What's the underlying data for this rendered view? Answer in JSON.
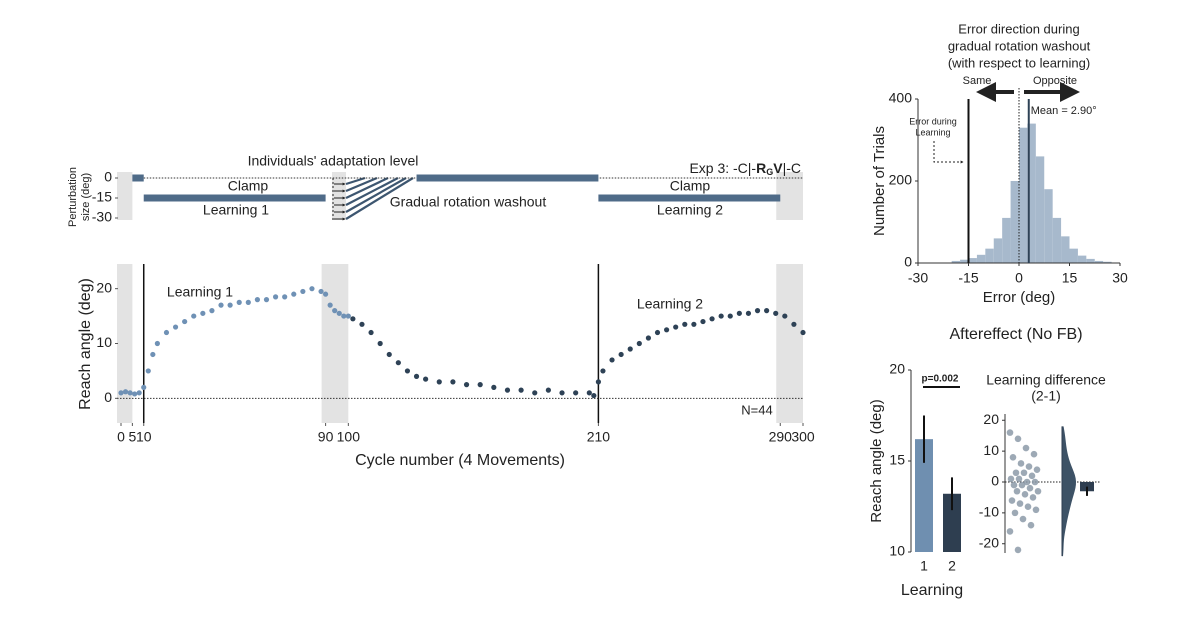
{
  "chart_data": [
    {
      "type": "schedule",
      "ylabel": [
        "Perturbation",
        "size (deg)"
      ],
      "xlim": [
        0,
        300
      ],
      "ylim": [
        -30,
        0
      ],
      "yticks": [
        0,
        -15,
        -30
      ],
      "hline": 0,
      "no_feedback": [
        [
          0,
          5
        ],
        [
          290,
          300
        ]
      ],
      "segments": [
        {
          "start": 5,
          "end": 10,
          "value": 0,
          "color": "#4f6b88"
        },
        {
          "start": 10,
          "end": 90,
          "value": -15,
          "color": "#4f6b88"
        },
        {
          "start": 130,
          "end": 210,
          "value": 0,
          "color": "#4f6b88"
        },
        {
          "start": 210,
          "end": 290,
          "value": -15,
          "color": "#4f6b88"
        }
      ],
      "annotations": {
        "adaptation": "Individuals' adaptation level",
        "clamp1": "Clamp",
        "learning1": "Learning 1",
        "washout": "Gradual rotation washout",
        "clamp2": "Clamp",
        "learning2": "Learning 2"
      },
      "experiment_label": [
        "Exp 3: -C|-",
        "R",
        "G",
        "V",
        "|-C"
      ]
    },
    {
      "type": "scatter",
      "xlabel": "Cycle number (4 Movements)",
      "ylabel": "Reach angle (deg)",
      "xlim": [
        0,
        300
      ],
      "ylim": [
        -4.5,
        24.5
      ],
      "xticks": [
        0,
        5,
        10,
        90,
        100,
        210,
        290,
        300
      ],
      "yticks": [
        0,
        10,
        20
      ],
      "hline": 0,
      "vlines": [
        10,
        210
      ],
      "no_feedback": [
        [
          0,
          5
        ],
        [
          90,
          100
        ],
        [
          290,
          300
        ]
      ],
      "note": "N=44",
      "series": [
        {
          "name": "Learning 1",
          "color": "#6f91b5",
          "x": [
            0,
            2,
            4,
            6,
            8,
            10,
            12,
            14,
            16,
            20,
            24,
            28,
            32,
            36,
            40,
            44,
            48,
            52,
            56,
            60,
            64,
            68,
            72,
            76,
            80,
            84,
            88,
            90,
            92,
            94,
            96,
            98,
            100
          ],
          "values": [
            1,
            1.2,
            1,
            0.8,
            1,
            2,
            5,
            8,
            10,
            12,
            13,
            14,
            15,
            15.5,
            16,
            17,
            17,
            17.5,
            17.5,
            18,
            18,
            18.5,
            18.5,
            19,
            19.5,
            20,
            19.5,
            19,
            17,
            16,
            15.5,
            15,
            15
          ]
        },
        {
          "name": "Learning 2",
          "color": "#2e4256",
          "x": [
            102,
            106,
            110,
            114,
            118,
            122,
            126,
            130,
            134,
            140,
            146,
            152,
            158,
            164,
            170,
            176,
            182,
            188,
            194,
            200,
            206,
            208,
            210,
            212,
            216,
            220,
            224,
            228,
            232,
            236,
            240,
            244,
            248,
            252,
            256,
            260,
            264,
            268,
            272,
            276,
            280,
            284,
            288,
            292,
            296,
            300
          ],
          "values": [
            14.5,
            13.5,
            12,
            10,
            8,
            6.5,
            5,
            4,
            3.5,
            3,
            3,
            2.5,
            2.5,
            2,
            1.5,
            1.5,
            1,
            1.5,
            1,
            1,
            1,
            0.5,
            3,
            5,
            7,
            8,
            9,
            10,
            11,
            12,
            12.5,
            13,
            13.5,
            13.5,
            14,
            14.5,
            15,
            15,
            15.5,
            15.5,
            16,
            16,
            15.5,
            15,
            13.5,
            12
          ]
        }
      ]
    },
    {
      "type": "histogram",
      "title": [
        "Error direction during",
        "gradual rotation washout",
        "(with respect to learning)"
      ],
      "direction_labels": [
        "Same",
        "Opposite"
      ],
      "xlabel": "Error (deg)",
      "ylabel": "Number of Trials",
      "xlim": [
        -30,
        30
      ],
      "ylim": [
        0,
        400
      ],
      "xticks": [
        -30,
        -15,
        0,
        15,
        30
      ],
      "yticks": [
        0,
        200,
        400
      ],
      "color": "#a7b9cc",
      "bins": [
        -20,
        -17.5,
        -15,
        -12.5,
        -10,
        -7.5,
        -5,
        -2.5,
        0,
        2.5,
        5,
        7.5,
        10,
        12.5,
        15,
        17.5,
        20,
        22.5,
        25,
        27.5
      ],
      "counts": [
        5,
        8,
        12,
        20,
        35,
        60,
        110,
        200,
        330,
        340,
        260,
        180,
        110,
        65,
        35,
        18,
        10,
        5,
        3
      ],
      "learning_error": -15,
      "learning_error_label": [
        "Error during",
        "Learning"
      ],
      "mean": 2.9,
      "mean_label": "Mean = 2.90°",
      "mean_color": "#2e4256"
    },
    {
      "type": "bar",
      "title": "Aftereffect (No FB)",
      "xlabel": "Learning",
      "ylabel": "Reach angle (deg)",
      "categories": [
        "1",
        "2"
      ],
      "values": [
        16.2,
        13.2
      ],
      "errors": [
        1.3,
        0.9
      ],
      "colors": [
        "#6f8fb0",
        "#2e3e50"
      ],
      "ylim": [
        10,
        20
      ],
      "yticks": [
        10,
        15,
        20
      ],
      "p_label": "p=0.002"
    },
    {
      "type": "strip",
      "title": [
        "Learning difference",
        "(2-1)"
      ],
      "ylim": [
        -23,
        23
      ],
      "yticks": [
        -20,
        -10,
        0,
        10,
        20
      ],
      "hline": 0,
      "values": [
        16,
        14,
        11,
        9,
        8,
        6,
        5,
        4,
        3,
        3,
        2,
        1,
        1,
        0,
        0,
        -1,
        -1,
        -2,
        -3,
        -3,
        -4,
        -5,
        -6,
        -7,
        -8,
        -9,
        -10,
        -12,
        -14,
        -16,
        -22
      ],
      "color": "#8c9aa8",
      "mean": -3,
      "error": 1.5,
      "mean_color": "#2e3e50"
    }
  ]
}
